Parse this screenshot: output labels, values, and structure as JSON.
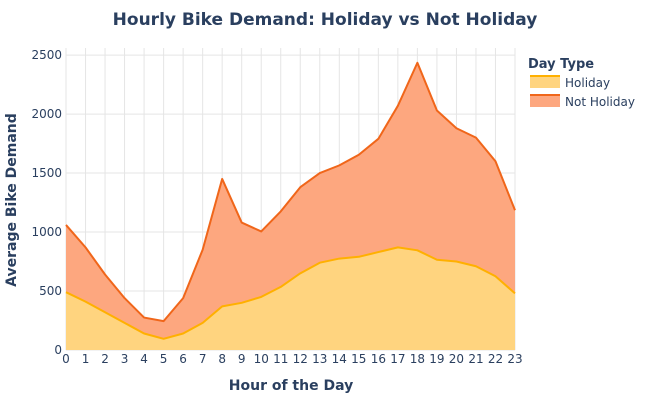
{
  "chart_data": {
    "type": "area",
    "stacked": true,
    "title": "Hourly Bike Demand: Holiday vs Not Holiday",
    "xlabel": "Hour of the Day",
    "ylabel": "Average Bike Demand",
    "x": [
      0,
      1,
      2,
      3,
      4,
      5,
      6,
      7,
      8,
      9,
      10,
      11,
      12,
      13,
      14,
      15,
      16,
      17,
      18,
      19,
      20,
      21,
      22,
      23
    ],
    "xlim": [
      0,
      23
    ],
    "ylim": [
      0,
      2560
    ],
    "yticks": [
      0,
      500,
      1000,
      1500,
      2000,
      2500
    ],
    "grid": true,
    "legend": {
      "title": "Day Type",
      "position": "top-right"
    },
    "series": [
      {
        "name": "Holiday",
        "line_color": "#FFB000",
        "fill_color": "#FFD47F",
        "values": [
          490,
          410,
          320,
          230,
          140,
          95,
          140,
          230,
          370,
          400,
          450,
          535,
          650,
          740,
          775,
          790,
          830,
          870,
          845,
          765,
          750,
          710,
          625,
          480
        ]
      },
      {
        "name": "Not Holiday",
        "line_color": "#F0661A",
        "fill_color": "#FDA77F",
        "values": [
          570,
          460,
          320,
          210,
          135,
          150,
          300,
          620,
          1080,
          680,
          555,
          640,
          730,
          760,
          790,
          865,
          960,
          1200,
          1590,
          1265,
          1130,
          1090,
          975,
          705
        ]
      }
    ]
  }
}
